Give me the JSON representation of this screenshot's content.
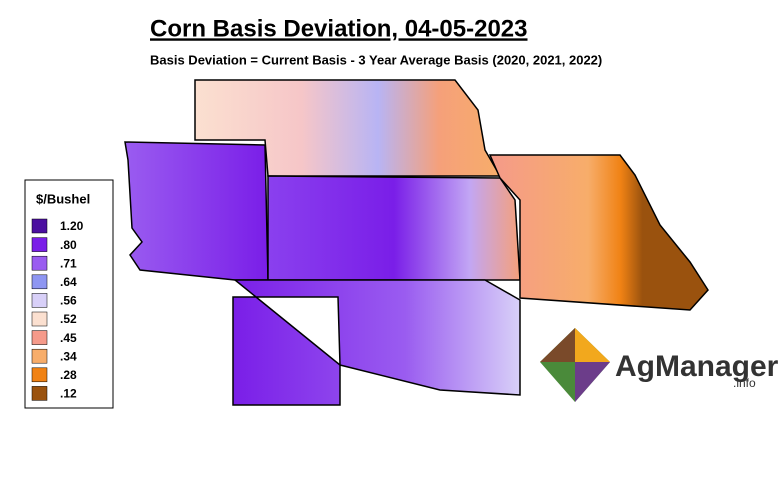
{
  "header": {
    "title": "Corn Basis Deviation, 04-05-2023",
    "subtitle": "Basis Deviation = Current Basis - 3 Year Average Basis (2020, 2021, 2022)"
  },
  "legend": {
    "title": "$/Bushel",
    "entries": [
      {
        "label": "1.20",
        "color": "#4b0fa0"
      },
      {
        "label": ".80",
        "color": "#7a1ee8"
      },
      {
        "label": ".71",
        "color": "#9a5cf0"
      },
      {
        "label": ".64",
        "color": "#8e96f2"
      },
      {
        "label": ".56",
        "color": "#d8d0f8"
      },
      {
        "label": ".52",
        "color": "#fbe0d0"
      },
      {
        "label": ".45",
        "color": "#f59a8a"
      },
      {
        "label": ".34",
        "color": "#f7ad6a"
      },
      {
        "label": ".28",
        "color": "#f08214"
      },
      {
        "label": ".12",
        "color": "#9a520e"
      }
    ]
  },
  "logo": {
    "name": "AgManager",
    "suffix": ".info"
  }
}
